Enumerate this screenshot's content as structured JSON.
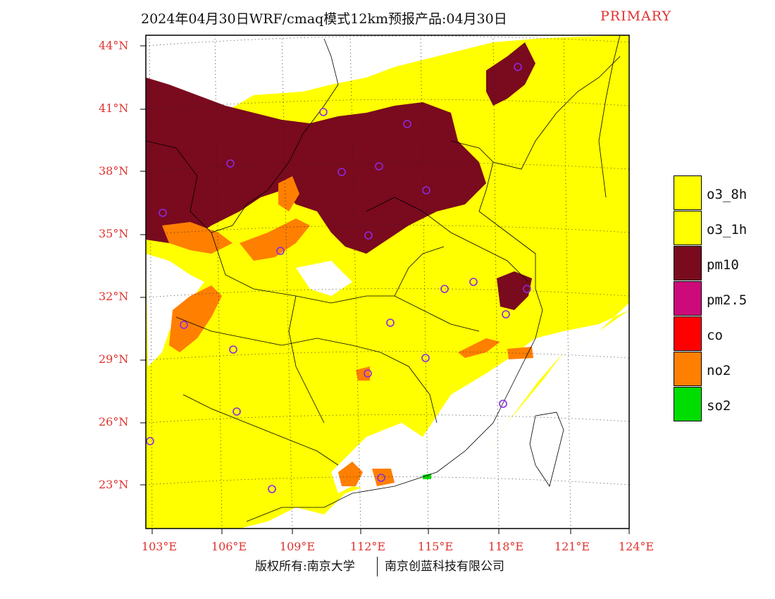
{
  "title": {
    "text": "2024年04月30日WRF/cmaq模式12km预报产品:04月30日",
    "tag": "PRIMARY"
  },
  "axes": {
    "lat_labels": [
      "44°N",
      "41°N",
      "38°N",
      "35°N",
      "32°N",
      "29°N",
      "26°N",
      "23°N"
    ],
    "lon_labels": [
      "103°E",
      "106°E",
      "109°E",
      "112°E",
      "115°E",
      "118°E",
      "121°E",
      "124°E"
    ]
  },
  "legend": {
    "items": [
      {
        "label": "o3_8h",
        "color": "#ffff00"
      },
      {
        "label": "o3_1h",
        "color": "#ffff00"
      },
      {
        "label": "pm10",
        "color": "#7a0a1e"
      },
      {
        "label": "pm2.5",
        "color": "#cc0a7a"
      },
      {
        "label": "co",
        "color": "#ff0000"
      },
      {
        "label": "no2",
        "color": "#ff7f00"
      },
      {
        "label": "so2",
        "color": "#00dd00"
      }
    ]
  },
  "credits": {
    "left": "版权所有:南京大学",
    "right": "南京创蓝科技有限公司"
  },
  "colors": {
    "label": "#e0322f",
    "o3": "#ffff00",
    "pm10": "#7a0a1e",
    "no2": "#ff7f00",
    "so2": "#00dd00",
    "station": "#8a2be2"
  }
}
